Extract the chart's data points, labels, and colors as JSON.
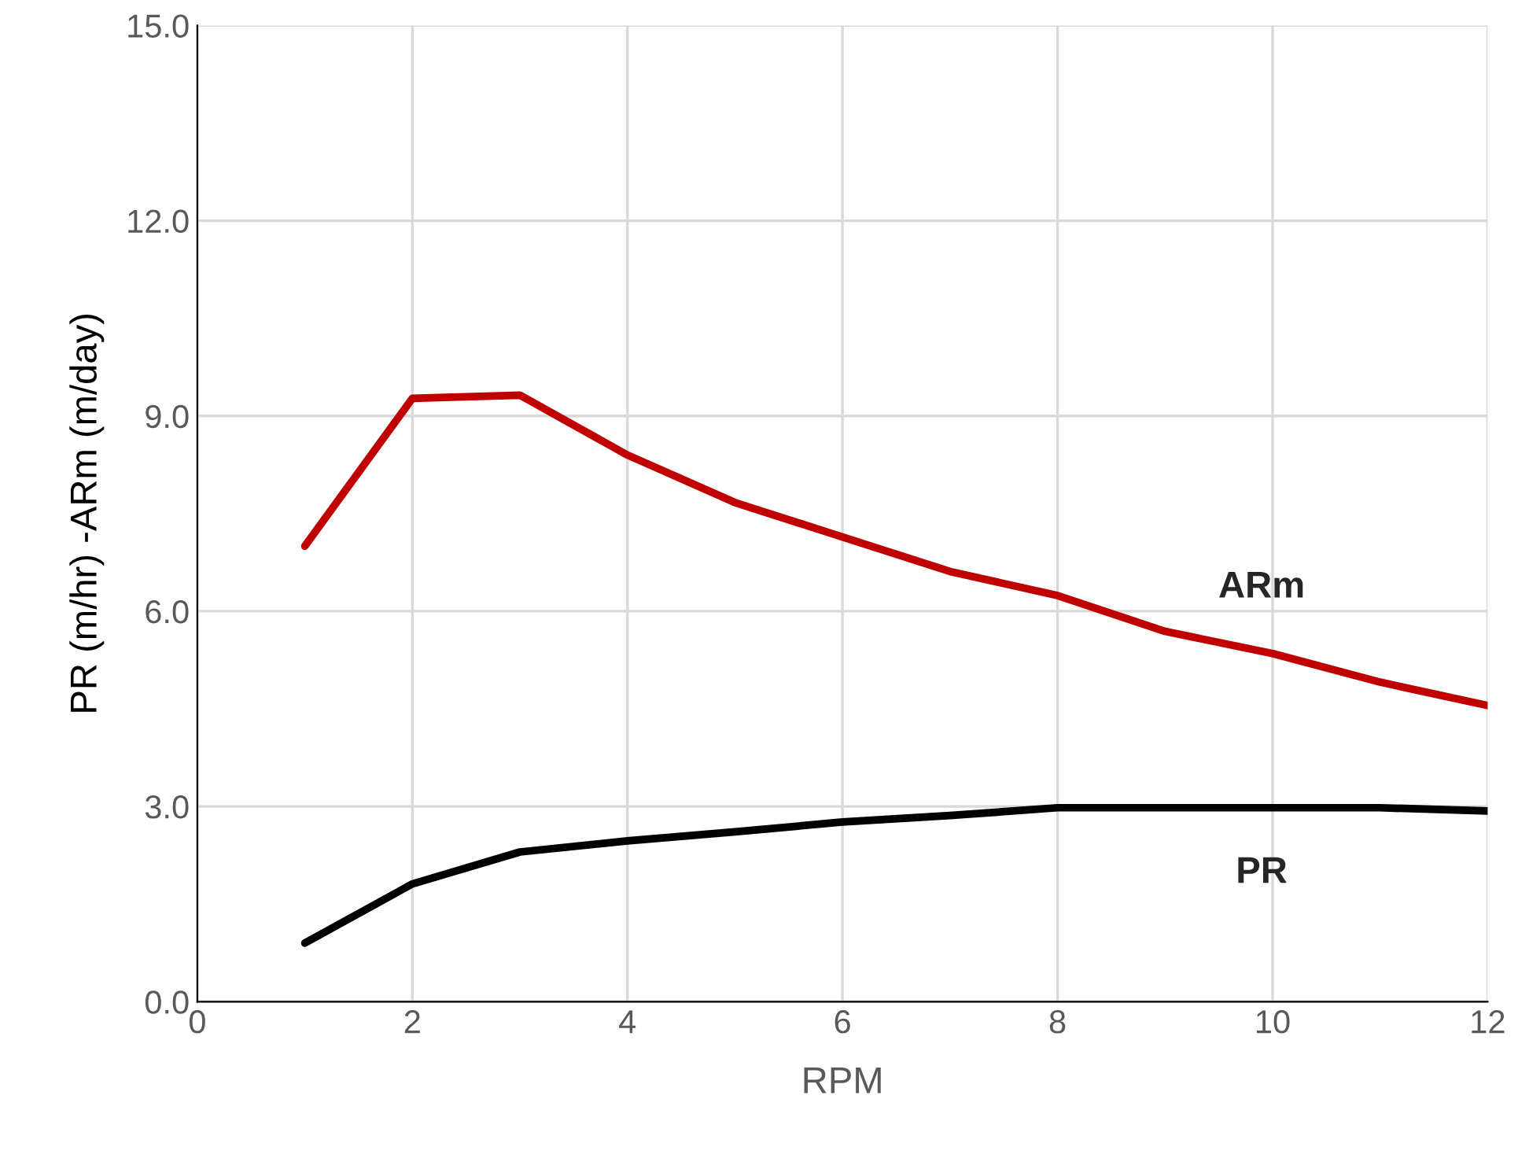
{
  "chart_data": {
    "type": "line",
    "xlabel": "RPM",
    "ylabel": "PR (m/hr) -ARm (m/day)",
    "x": [
      1,
      2,
      3,
      4,
      5,
      6,
      7,
      8,
      9,
      10,
      11,
      12
    ],
    "series": [
      {
        "name": "ARm",
        "color": "#c00000",
        "values": [
          7.0,
          9.27,
          9.32,
          8.4,
          7.67,
          7.14,
          6.61,
          6.24,
          5.69,
          5.35,
          4.91,
          4.55
        ]
      },
      {
        "name": "PR",
        "color": "#000000",
        "values": [
          0.9,
          1.81,
          2.3,
          2.47,
          2.61,
          2.76,
          2.86,
          2.98,
          2.98,
          2.98,
          2.98,
          2.93
        ]
      }
    ],
    "xlim": [
      0,
      12
    ],
    "xticks": [
      0,
      2,
      4,
      6,
      8,
      10,
      12
    ],
    "ylim": [
      0,
      15
    ],
    "yticks": [
      {
        "value": 0,
        "label": "0.0"
      },
      {
        "value": 3,
        "label": "3.0"
      },
      {
        "value": 6,
        "label": "6.0"
      },
      {
        "value": 9,
        "label": "9.0"
      },
      {
        "value": 12,
        "label": "12.0"
      },
      {
        "value": 15,
        "label": "15.0"
      }
    ],
    "grid": true,
    "legend": false,
    "marker": "none",
    "line_style": "solid"
  }
}
